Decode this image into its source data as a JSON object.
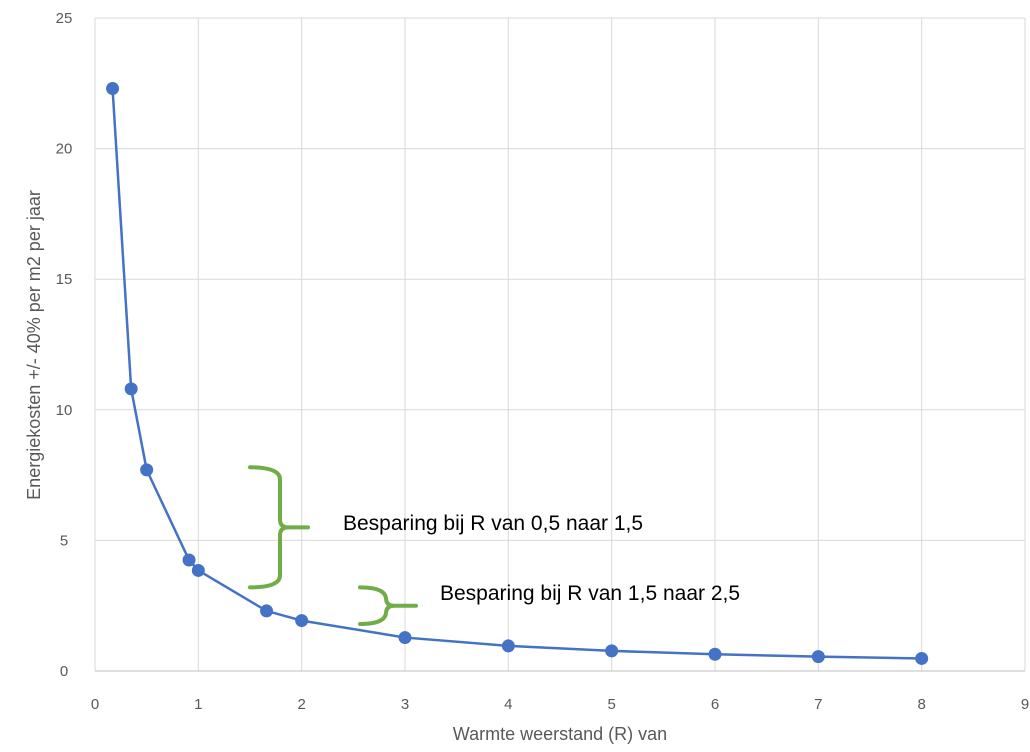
{
  "chart_data": {
    "type": "line",
    "title": "",
    "xlabel": "Warmte weerstand (R) van",
    "ylabel": "Energiekosten +/- 40% per m2 per jaar",
    "xlim": [
      0,
      9
    ],
    "ylim": [
      0,
      25
    ],
    "x_ticks": [
      "0",
      "1",
      "2",
      "3",
      "4",
      "5",
      "6",
      "7",
      "8",
      "9"
    ],
    "y_ticks": [
      "0",
      "5",
      "10",
      "15",
      "20",
      "25"
    ],
    "grid": true,
    "legend": "none",
    "series": [
      {
        "color": "#4472C4",
        "points": [
          {
            "x": 0.17,
            "y": 22.3
          },
          {
            "x": 0.35,
            "y": 10.8
          },
          {
            "x": 0.5,
            "y": 7.7
          },
          {
            "x": 0.91,
            "y": 4.25
          },
          {
            "x": 1.0,
            "y": 3.85
          },
          {
            "x": 1.66,
            "y": 2.3
          },
          {
            "x": 2.0,
            "y": 1.93
          },
          {
            "x": 3.0,
            "y": 1.28
          },
          {
            "x": 4.0,
            "y": 0.96
          },
          {
            "x": 5.0,
            "y": 0.77
          },
          {
            "x": 6.0,
            "y": 0.64
          },
          {
            "x": 7.0,
            "y": 0.55
          },
          {
            "x": 8.0,
            "y": 0.48
          }
        ]
      }
    ],
    "annotations": [
      {
        "text": "Besparing bij R van 0,5 naar 1,5",
        "bracket_color": "#70AD47",
        "y_from": 7.8,
        "y_to": 3.2
      },
      {
        "text": "Besparing bij R van 1,5 naar 2,5",
        "bracket_color": "#70AD47",
        "y_from": 3.2,
        "y_to": 1.8
      }
    ]
  }
}
